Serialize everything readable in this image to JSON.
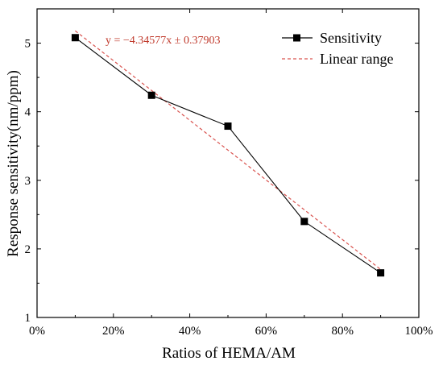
{
  "chart_data": {
    "type": "line",
    "title": "",
    "xlabel": "Ratios of HEMA/AM",
    "ylabel": "Response sensitivity(nm/ppm)",
    "xlim": [
      0,
      100
    ],
    "ylim": [
      1,
      5.5
    ],
    "x_ticks": [
      0,
      20,
      40,
      60,
      80,
      100
    ],
    "x_tick_labels": [
      "0%",
      "20%",
      "40%",
      "60%",
      "80%",
      "100%"
    ],
    "y_ticks": [
      1,
      2,
      3,
      4,
      5
    ],
    "y_tick_labels": [
      "1",
      "2",
      "3",
      "4",
      "5"
    ],
    "grid": false,
    "legend_position": "top-right",
    "series": [
      {
        "name": "Sensitivity",
        "style": "solid line with square markers",
        "color": "#000000",
        "x": [
          10,
          30,
          50,
          70,
          90
        ],
        "y": [
          5.08,
          4.24,
          3.79,
          2.4,
          1.65
        ]
      },
      {
        "name": "Linear range",
        "style": "dashed line",
        "color": "#d9534f",
        "x": [
          10,
          90
        ],
        "y": [
          5.18,
          1.7
        ]
      }
    ],
    "annotation": "y = −4.34577x ± 0.37903"
  }
}
